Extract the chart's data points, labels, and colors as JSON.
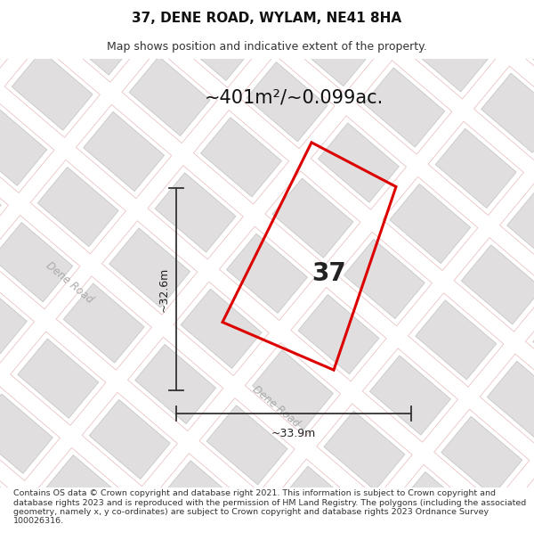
{
  "title": "37, DENE ROAD, WYLAM, NE41 8HA",
  "subtitle": "Map shows position and indicative extent of the property.",
  "area_text": "~401m²/~0.099ac.",
  "label_37": "37",
  "dim_vertical": "~32.6m",
  "dim_horizontal": "~33.9m",
  "dene_road_label_1": "Dene Road",
  "dene_road_label_2": "Dene Road",
  "footer": "Contains OS data © Crown copyright and database right 2021. This information is subject to Crown copyright and database rights 2023 and is reproduced with the permission of HM Land Registry. The polygons (including the associated geometry, namely x, y co-ordinates) are subject to Crown copyright and database rights 2023 Ordnance Survey 100026316.",
  "red_color": "#dd0000",
  "building_face": "#e0dede",
  "building_edge_dark": "#c8c8c8",
  "building_edge_pink": "#e8b8b8",
  "road_line_color": "#e8b8b8",
  "bg_color": "#f4f2f2",
  "title_fontsize": 11,
  "subtitle_fontsize": 9,
  "area_fontsize": 15,
  "label_fontsize": 20,
  "dim_fontsize": 9,
  "footer_fontsize": 6.8
}
